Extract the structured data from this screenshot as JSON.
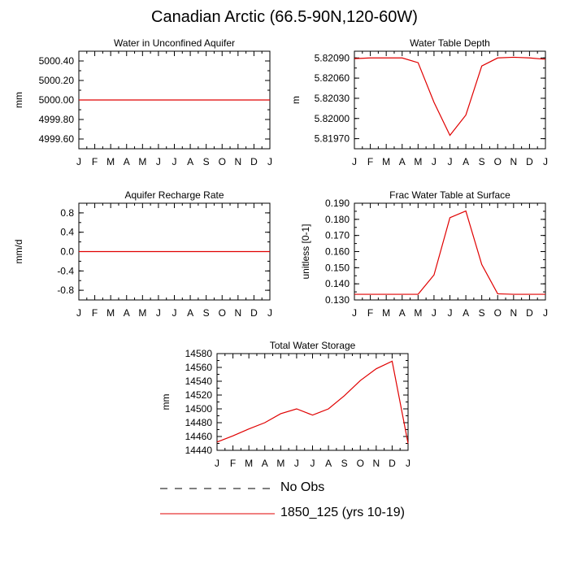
{
  "page": {
    "title": "Canadian Arctic (66.5-90N,120-60W)"
  },
  "legend": {
    "entries": [
      {
        "label": "No Obs",
        "style": "dashed",
        "color": "#000000"
      },
      {
        "label": "1850_125 (yrs 10-19)",
        "style": "solid",
        "color": "#e00000"
      }
    ]
  },
  "chart_data": [
    {
      "type": "line",
      "title": "Water in Unconfined Aquifer",
      "ylabel": "mm",
      "xlabel": "",
      "categories": [
        "J",
        "F",
        "M",
        "A",
        "M",
        "J",
        "J",
        "A",
        "S",
        "O",
        "N",
        "D",
        "J"
      ],
      "ylim": [
        4999.5,
        5000.5
      ],
      "yticks": [
        4999.6,
        4999.8,
        5000.0,
        5000.2,
        5000.4
      ],
      "ytick_labels": [
        "4999.60",
        "4999.80",
        "5000.00",
        "5000.20",
        "5000.40"
      ],
      "series": [
        {
          "name": "1850_125 (yrs 10-19)",
          "color": "#e00000",
          "values": [
            5000,
            5000,
            5000,
            5000,
            5000,
            5000,
            5000,
            5000,
            5000,
            5000,
            5000,
            5000,
            5000
          ]
        }
      ]
    },
    {
      "type": "line",
      "title": "Water Table Depth",
      "ylabel": "m",
      "xlabel": "",
      "categories": [
        "J",
        "F",
        "M",
        "A",
        "M",
        "J",
        "J",
        "A",
        "S",
        "O",
        "N",
        "D",
        "J"
      ],
      "ylim": [
        5.81955,
        5.821
      ],
      "yticks": [
        5.8197,
        5.82,
        5.8203,
        5.8206,
        5.8209
      ],
      "ytick_labels": [
        "5.81970",
        "5.82000",
        "5.82030",
        "5.82060",
        "5.82090"
      ],
      "series": [
        {
          "name": "1850_125 (yrs 10-19)",
          "color": "#e00000",
          "values": [
            5.82089,
            5.8209,
            5.8209,
            5.8209,
            5.82083,
            5.82024,
            5.81975,
            5.82005,
            5.82078,
            5.8209,
            5.82091,
            5.8209,
            5.82088
          ]
        }
      ]
    },
    {
      "type": "line",
      "title": "Aquifer Recharge Rate",
      "ylabel": "mm/d",
      "xlabel": "",
      "categories": [
        "J",
        "F",
        "M",
        "A",
        "M",
        "J",
        "J",
        "A",
        "S",
        "O",
        "N",
        "D",
        "J"
      ],
      "ylim": [
        -1.0,
        1.0
      ],
      "yticks": [
        -0.8,
        -0.4,
        0.0,
        0.4,
        0.8
      ],
      "ytick_labels": [
        "-0.8",
        "-0.4",
        "0.0",
        "0.4",
        "0.8"
      ],
      "series": [
        {
          "name": "1850_125 (yrs 10-19)",
          "color": "#e00000",
          "values": [
            0,
            0,
            0,
            0,
            0,
            0,
            0,
            0,
            0,
            0,
            0,
            0,
            0
          ]
        }
      ]
    },
    {
      "type": "line",
      "title": "Frac Water Table at Surface",
      "ylabel": "unitless [0-1]",
      "xlabel": "",
      "categories": [
        "J",
        "F",
        "M",
        "A",
        "M",
        "J",
        "J",
        "A",
        "S",
        "O",
        "N",
        "D",
        "J"
      ],
      "ylim": [
        0.13,
        0.19
      ],
      "yticks": [
        0.13,
        0.14,
        0.15,
        0.16,
        0.17,
        0.18,
        0.19
      ],
      "ytick_labels": [
        "0.130",
        "0.140",
        "0.150",
        "0.160",
        "0.170",
        "0.180",
        "0.190"
      ],
      "series": [
        {
          "name": "1850_125 (yrs 10-19)",
          "color": "#e00000",
          "values": [
            0.1335,
            0.1335,
            0.1335,
            0.1335,
            0.1335,
            0.1455,
            0.181,
            0.1852,
            0.152,
            0.1338,
            0.1335,
            0.1335,
            0.1335
          ]
        }
      ]
    },
    {
      "type": "line",
      "title": "Total Water Storage",
      "ylabel": "mm",
      "xlabel": "",
      "categories": [
        "J",
        "F",
        "M",
        "A",
        "M",
        "J",
        "J",
        "A",
        "S",
        "O",
        "N",
        "D",
        "J"
      ],
      "ylim": [
        14440,
        14580
      ],
      "yticks": [
        14440,
        14460,
        14480,
        14500,
        14520,
        14540,
        14560,
        14580
      ],
      "ytick_labels": [
        "14440",
        "14460",
        "14480",
        "14500",
        "14520",
        "14540",
        "14560",
        "14580"
      ],
      "series": [
        {
          "name": "1850_125 (yrs 10-19)",
          "color": "#e00000",
          "values": [
            14452,
            14461,
            14471,
            14480,
            14493,
            14500,
            14491,
            14500,
            14519,
            14541,
            14558,
            14569,
            14450
          ]
        }
      ]
    }
  ]
}
